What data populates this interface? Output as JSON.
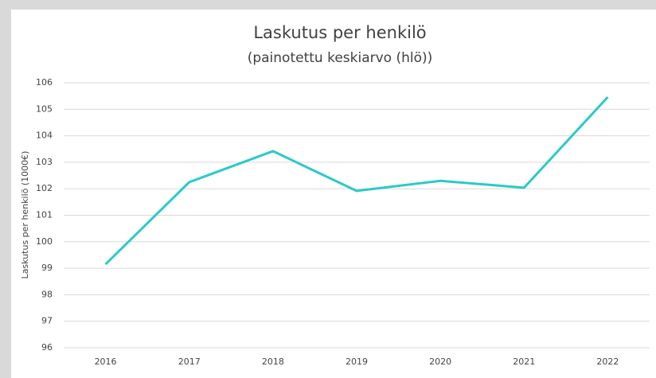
{
  "chart_data": {
    "type": "line",
    "title": "Laskutus per henkilö",
    "subtitle": "(painotettu keskiarvo (hlö))",
    "y_label": "Laskutus per henkilö (1000€)",
    "categories": [
      "2016",
      "2017",
      "2018",
      "2019",
      "2020",
      "2021",
      "2022"
    ],
    "values": [
      99.15,
      102.25,
      103.42,
      101.92,
      102.3,
      102.04,
      105.46
    ],
    "color": "#2cc9c9",
    "ylim": [
      96,
      106
    ],
    "yticks": [
      96,
      97,
      98,
      99,
      100,
      101,
      102,
      103,
      104,
      105,
      106
    ],
    "grid": true
  }
}
